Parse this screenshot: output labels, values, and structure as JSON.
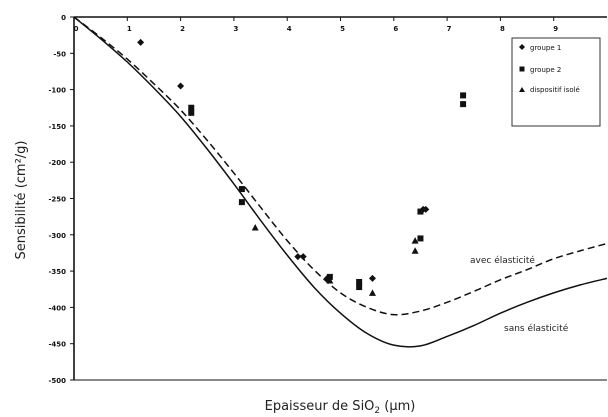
{
  "chart_data": {
    "type": "scatter",
    "title": "",
    "xlabel": "Epaisseur de SiO",
    "xlabel_sub": "2",
    "xlabel_unit": " (µm)",
    "ylabel": "Sensibilité (cm²/g)",
    "xlim": [
      0,
      10
    ],
    "ylim": [
      -500,
      0
    ],
    "xticks": [
      0,
      1,
      2,
      3,
      4,
      5,
      6,
      7,
      8,
      9
    ],
    "yticks": [
      0,
      -50,
      -100,
      -150,
      -200,
      -250,
      -300,
      -350,
      -400,
      -450,
      -500
    ],
    "grid": false,
    "legend_position": "top-right",
    "series": [
      {
        "name": "groupe 1",
        "marker": "diamond",
        "points": [
          [
            1.25,
            -35
          ],
          [
            2.0,
            -95
          ],
          [
            4.2,
            -330
          ],
          [
            4.3,
            -330
          ],
          [
            4.75,
            -360
          ],
          [
            5.6,
            -360
          ],
          [
            6.55,
            -265
          ],
          [
            6.6,
            -265
          ]
        ]
      },
      {
        "name": "groupe 2",
        "marker": "square",
        "points": [
          [
            2.2,
            -125
          ],
          [
            2.2,
            -132
          ],
          [
            3.15,
            -237
          ],
          [
            3.15,
            -255
          ],
          [
            4.8,
            -358
          ],
          [
            5.35,
            -365
          ],
          [
            5.35,
            -372
          ],
          [
            6.5,
            -305
          ],
          [
            6.5,
            -268
          ],
          [
            7.3,
            -108
          ],
          [
            7.3,
            -120
          ]
        ]
      },
      {
        "name": "dispositif isolé",
        "marker": "triangle",
        "points": [
          [
            3.4,
            -290
          ],
          [
            4.8,
            -363
          ],
          [
            5.6,
            -380
          ],
          [
            6.4,
            -308
          ],
          [
            6.4,
            -322
          ]
        ]
      }
    ],
    "curves": [
      {
        "name": "avec élasticité",
        "style": "dashed",
        "points": [
          [
            0,
            0
          ],
          [
            0.5,
            -28
          ],
          [
            1,
            -58
          ],
          [
            1.5,
            -92
          ],
          [
            2,
            -128
          ],
          [
            2.5,
            -170
          ],
          [
            3,
            -215
          ],
          [
            3.5,
            -262
          ],
          [
            4,
            -308
          ],
          [
            4.5,
            -348
          ],
          [
            5,
            -380
          ],
          [
            5.5,
            -400
          ],
          [
            6,
            -410
          ],
          [
            6.5,
            -405
          ],
          [
            7,
            -393
          ],
          [
            7.5,
            -378
          ],
          [
            8,
            -362
          ],
          [
            8.5,
            -348
          ],
          [
            9,
            -333
          ],
          [
            9.5,
            -322
          ],
          [
            10,
            -312
          ]
        ]
      },
      {
        "name": "sans élasticité",
        "style": "solid",
        "points": [
          [
            0,
            0
          ],
          [
            0.5,
            -30
          ],
          [
            1,
            -62
          ],
          [
            1.5,
            -98
          ],
          [
            2,
            -137
          ],
          [
            2.5,
            -182
          ],
          [
            3,
            -230
          ],
          [
            3.5,
            -280
          ],
          [
            4,
            -328
          ],
          [
            4.5,
            -372
          ],
          [
            5,
            -408
          ],
          [
            5.5,
            -436
          ],
          [
            6,
            -452
          ],
          [
            6.5,
            -453
          ],
          [
            7,
            -440
          ],
          [
            7.5,
            -425
          ],
          [
            8,
            -408
          ],
          [
            8.5,
            -393
          ],
          [
            9,
            -380
          ],
          [
            9.5,
            -369
          ],
          [
            10,
            -360
          ]
        ]
      }
    ]
  }
}
